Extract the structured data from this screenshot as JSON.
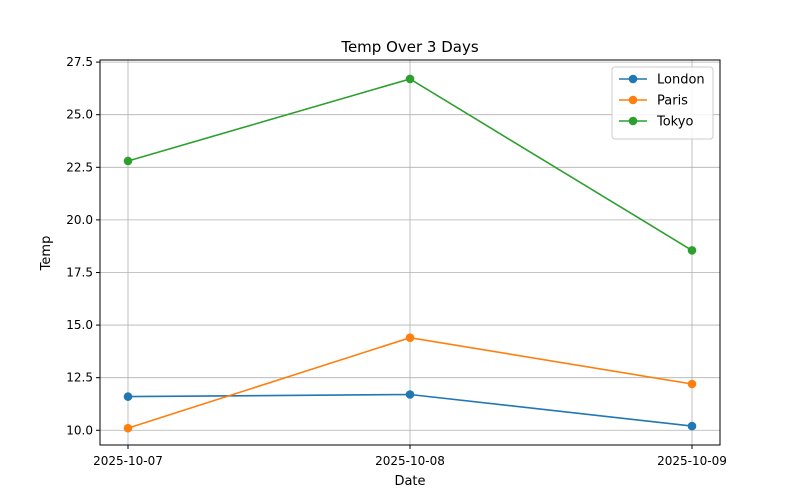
{
  "chart_data": {
    "type": "line",
    "title": "Temp Over 3 Days",
    "xlabel": "Date",
    "ylabel": "Temp",
    "x": [
      "2025-10-07",
      "2025-10-08",
      "2025-10-09"
    ],
    "ylim": [
      9.3,
      27.6
    ],
    "yticks": [
      10.0,
      12.5,
      15.0,
      17.5,
      20.0,
      22.5,
      25.0,
      27.5
    ],
    "ytick_labels": [
      "10.0",
      "12.5",
      "15.0",
      "17.5",
      "20.0",
      "22.5",
      "25.0",
      "27.5"
    ],
    "grid": true,
    "legend_position": "top-right",
    "series": [
      {
        "name": "London",
        "color": "#1f77b4",
        "values": [
          11.6,
          11.7,
          10.2
        ]
      },
      {
        "name": "Paris",
        "color": "#ff7f0e",
        "values": [
          10.1,
          14.4,
          12.2
        ]
      },
      {
        "name": "Tokyo",
        "color": "#2ca02c",
        "values": [
          22.8,
          26.7,
          18.55
        ]
      }
    ]
  }
}
